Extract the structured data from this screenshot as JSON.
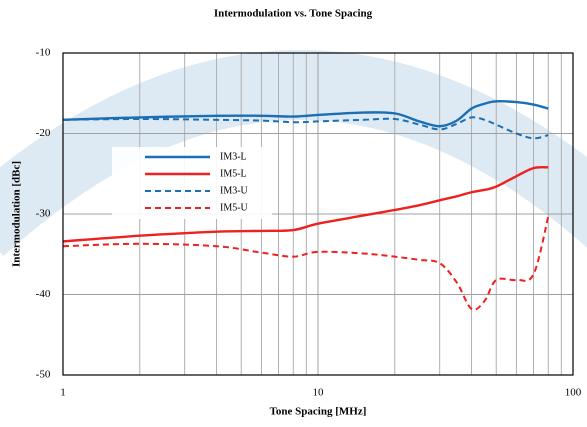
{
  "chart_data": {
    "type": "line",
    "title": "Intermodulation vs. Tone Spacing",
    "x_label": "Tone Spacing [MHz]",
    "y_label": "Intermodulation [dBc]",
    "x_scale": "log",
    "xlim": [
      1,
      100
    ],
    "xticks": [
      1,
      10,
      100
    ],
    "ylim": [
      -50,
      -10
    ],
    "yticks": [
      -10,
      -20,
      -30,
      -40,
      -50
    ],
    "grid": true,
    "legend": "upper left",
    "x": [
      1,
      2,
      4,
      6,
      8,
      10,
      15,
      20,
      25,
      30,
      35,
      40,
      45,
      50,
      60,
      70,
      80
    ],
    "series": [
      {
        "name": "IM3-L",
        "color": "#1a6fb5",
        "dash": false,
        "values": [
          -18.3,
          -18.0,
          -17.8,
          -17.8,
          -17.9,
          -17.7,
          -17.4,
          -17.5,
          -18.5,
          -19.1,
          -18.4,
          -16.9,
          -16.3,
          -16.0,
          -16.1,
          -16.4,
          -16.9
        ]
      },
      {
        "name": "IM5-L",
        "color": "#ee2020",
        "dash": false,
        "values": [
          -33.4,
          -32.7,
          -32.2,
          -32.1,
          -32.0,
          -31.2,
          -30.2,
          -29.5,
          -28.9,
          -28.3,
          -27.8,
          -27.3,
          -27.0,
          -26.6,
          -25.3,
          -24.3,
          -24.2
        ]
      },
      {
        "name": "IM3-U",
        "color": "#1a6fb5",
        "dash": true,
        "values": [
          -18.3,
          -18.2,
          -18.3,
          -18.4,
          -18.6,
          -18.5,
          -18.3,
          -18.2,
          -18.9,
          -19.5,
          -18.8,
          -18.0,
          -18.3,
          -18.9,
          -20.0,
          -20.6,
          -20.2
        ]
      },
      {
        "name": "IM5-U",
        "color": "#ee2020",
        "dash": true,
        "values": [
          -34.0,
          -33.7,
          -34.0,
          -34.8,
          -35.3,
          -34.7,
          -34.9,
          -35.3,
          -35.7,
          -36.1,
          -38.5,
          -41.8,
          -40.8,
          -38.2,
          -38.2,
          -37.5,
          -30.3
        ]
      }
    ]
  }
}
